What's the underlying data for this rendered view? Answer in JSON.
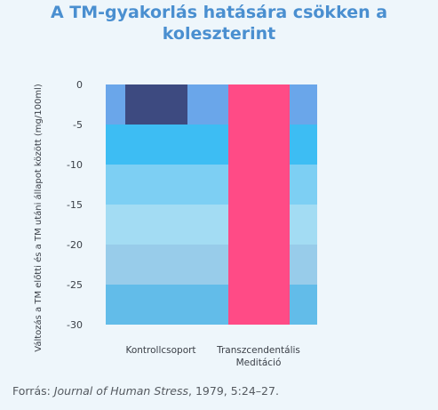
{
  "chart_data": {
    "type": "bar",
    "title_line1": "A TM-gyakorlás hatására csökken a",
    "title_line2": "koleszterint",
    "ylabel": "Változás a TM előtti és a TM utáni állapot között (mg/100ml)",
    "ylim": [
      -30,
      0
    ],
    "yticks": [
      0,
      -5,
      -10,
      -15,
      -20,
      -25,
      -30
    ],
    "categories": [
      "Kontrollcsoport",
      "Transzcendentális Meditáció"
    ],
    "category_label_lines": [
      [
        "Kontrollcsoport"
      ],
      [
        "Transzcendentális",
        "Meditáció"
      ]
    ],
    "values": [
      -5,
      -30
    ],
    "bar_colors": [
      "#3d4a80",
      "#ff4b86"
    ],
    "band_colors": [
      "#6aa6ea",
      "#3dbdf3",
      "#7dcff3",
      "#a3dcf3",
      "#98ccea",
      "#62bce9"
    ],
    "grid": false,
    "legend": "none"
  },
  "source": {
    "prefix": "Forrás: ",
    "journal": "Journal of Human Stress",
    "suffix": ", 1979, 5:24–27."
  }
}
